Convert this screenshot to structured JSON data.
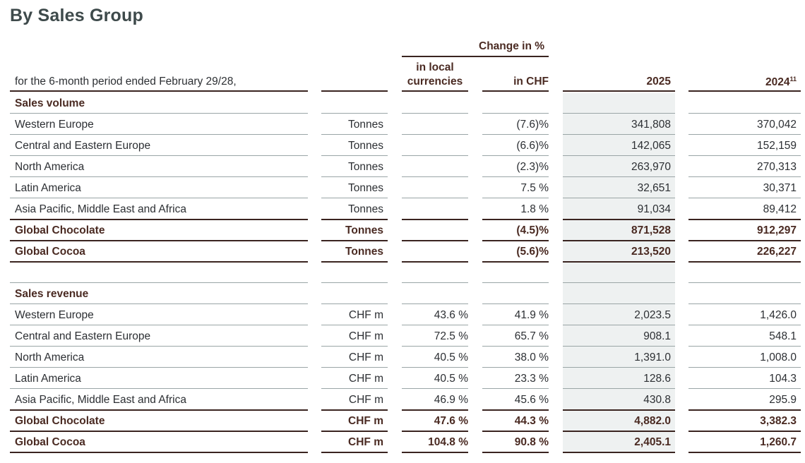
{
  "title": "By Sales Group",
  "header": {
    "period_label": "for the 6-month period ended February 29/28,",
    "change_group": "Change in %",
    "local_line1": "in local",
    "local_line2": "currencies",
    "in_chf": "in CHF",
    "year_current": "2025",
    "year_prior": "2024",
    "year_prior_footnote": "11"
  },
  "sales_volume": {
    "section_label": "Sales volume",
    "rows": [
      {
        "label": "Western Europe",
        "unit": "Tonnes",
        "local": "",
        "chf": "(7.6)%",
        "y2025": "341,808",
        "y2024": "370,042",
        "bold": false
      },
      {
        "label": "Central and Eastern Europe",
        "unit": "Tonnes",
        "local": "",
        "chf": "(6.6)%",
        "y2025": "142,065",
        "y2024": "152,159",
        "bold": false
      },
      {
        "label": "North America",
        "unit": "Tonnes",
        "local": "",
        "chf": "(2.3)%",
        "y2025": "263,970",
        "y2024": "270,313",
        "bold": false
      },
      {
        "label": "Latin America",
        "unit": "Tonnes",
        "local": "",
        "chf": "7.5 %",
        "y2025": "32,651",
        "y2024": "30,371",
        "bold": false
      },
      {
        "label": "Asia Pacific, Middle East and Africa",
        "unit": "Tonnes",
        "local": "",
        "chf": "1.8 %",
        "y2025": "91,034",
        "y2024": "89,412",
        "bold": false
      },
      {
        "label": "Global Chocolate",
        "unit": "Tonnes",
        "local": "",
        "chf": "(4.5)%",
        "y2025": "871,528",
        "y2024": "912,297",
        "bold": true
      },
      {
        "label": "Global Cocoa",
        "unit": "Tonnes",
        "local": "",
        "chf": "(5.6)%",
        "y2025": "213,520",
        "y2024": "226,227",
        "bold": true
      }
    ]
  },
  "sales_revenue": {
    "section_label": "Sales revenue",
    "rows": [
      {
        "label": "Western Europe",
        "unit": "CHF m",
        "local": "43.6 %",
        "chf": "41.9 %",
        "y2025": "2,023.5",
        "y2024": "1,426.0",
        "bold": false
      },
      {
        "label": "Central and Eastern Europe",
        "unit": "CHF m",
        "local": "72.5 %",
        "chf": "65.7 %",
        "y2025": "908.1",
        "y2024": "548.1",
        "bold": false
      },
      {
        "label": "North America",
        "unit": "CHF m",
        "local": "40.5 %",
        "chf": "38.0 %",
        "y2025": "1,391.0",
        "y2024": "1,008.0",
        "bold": false
      },
      {
        "label": "Latin America",
        "unit": "CHF m",
        "local": "40.5 %",
        "chf": "23.3 %",
        "y2025": "128.6",
        "y2024": "104.3",
        "bold": false
      },
      {
        "label": "Asia Pacific, Middle East and Africa",
        "unit": "CHF m",
        "local": "46.9 %",
        "chf": "45.6 %",
        "y2025": "430.8",
        "y2024": "295.9",
        "bold": false
      },
      {
        "label": "Global Chocolate",
        "unit": "CHF m",
        "local": "47.6 %",
        "chf": "44.3 %",
        "y2025": "4,882.0",
        "y2024": "3,382.3",
        "bold": true
      },
      {
        "label": "Global Cocoa",
        "unit": "CHF m",
        "local": "104.8 %",
        "chf": "90.8 %",
        "y2025": "2,405.1",
        "y2024": "1,260.7",
        "bold": true
      }
    ]
  }
}
